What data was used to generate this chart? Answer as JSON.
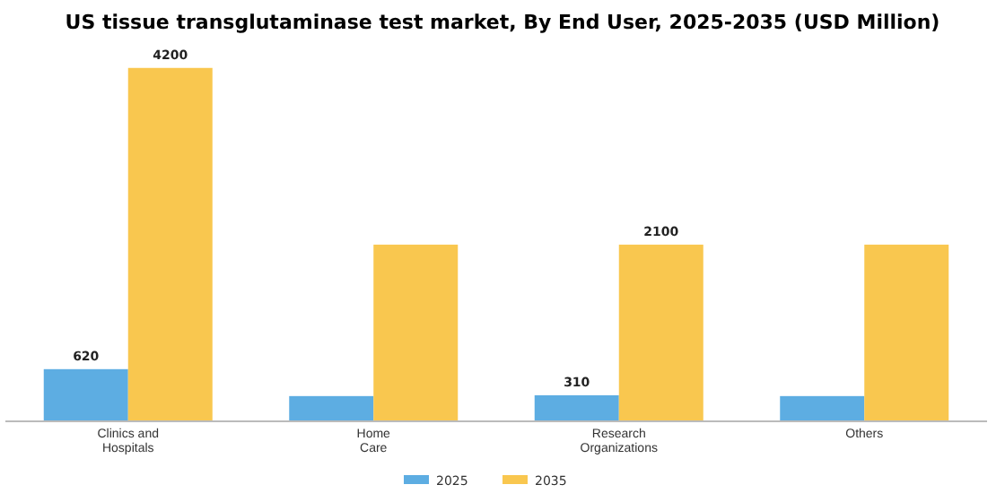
{
  "chart_data": {
    "type": "bar",
    "title": "US tissue transglutaminase test market, By End User, 2025-2035 (USD Million)",
    "categories": [
      "Clinics and Hospitals",
      "Home Care",
      "Research Organizations",
      "Others"
    ],
    "series": [
      {
        "name": "2025",
        "color": "#5dade2",
        "values": [
          620,
          300,
          310,
          300
        ],
        "value_labels": [
          "620",
          null,
          "310",
          null
        ]
      },
      {
        "name": "2035",
        "color": "#f9c74f",
        "values": [
          4200,
          2100,
          2100,
          2100
        ],
        "value_labels": [
          "4200",
          null,
          "2100",
          null
        ]
      }
    ],
    "tick_labels": "x",
    "legend": "bottom",
    "grid": false
  }
}
